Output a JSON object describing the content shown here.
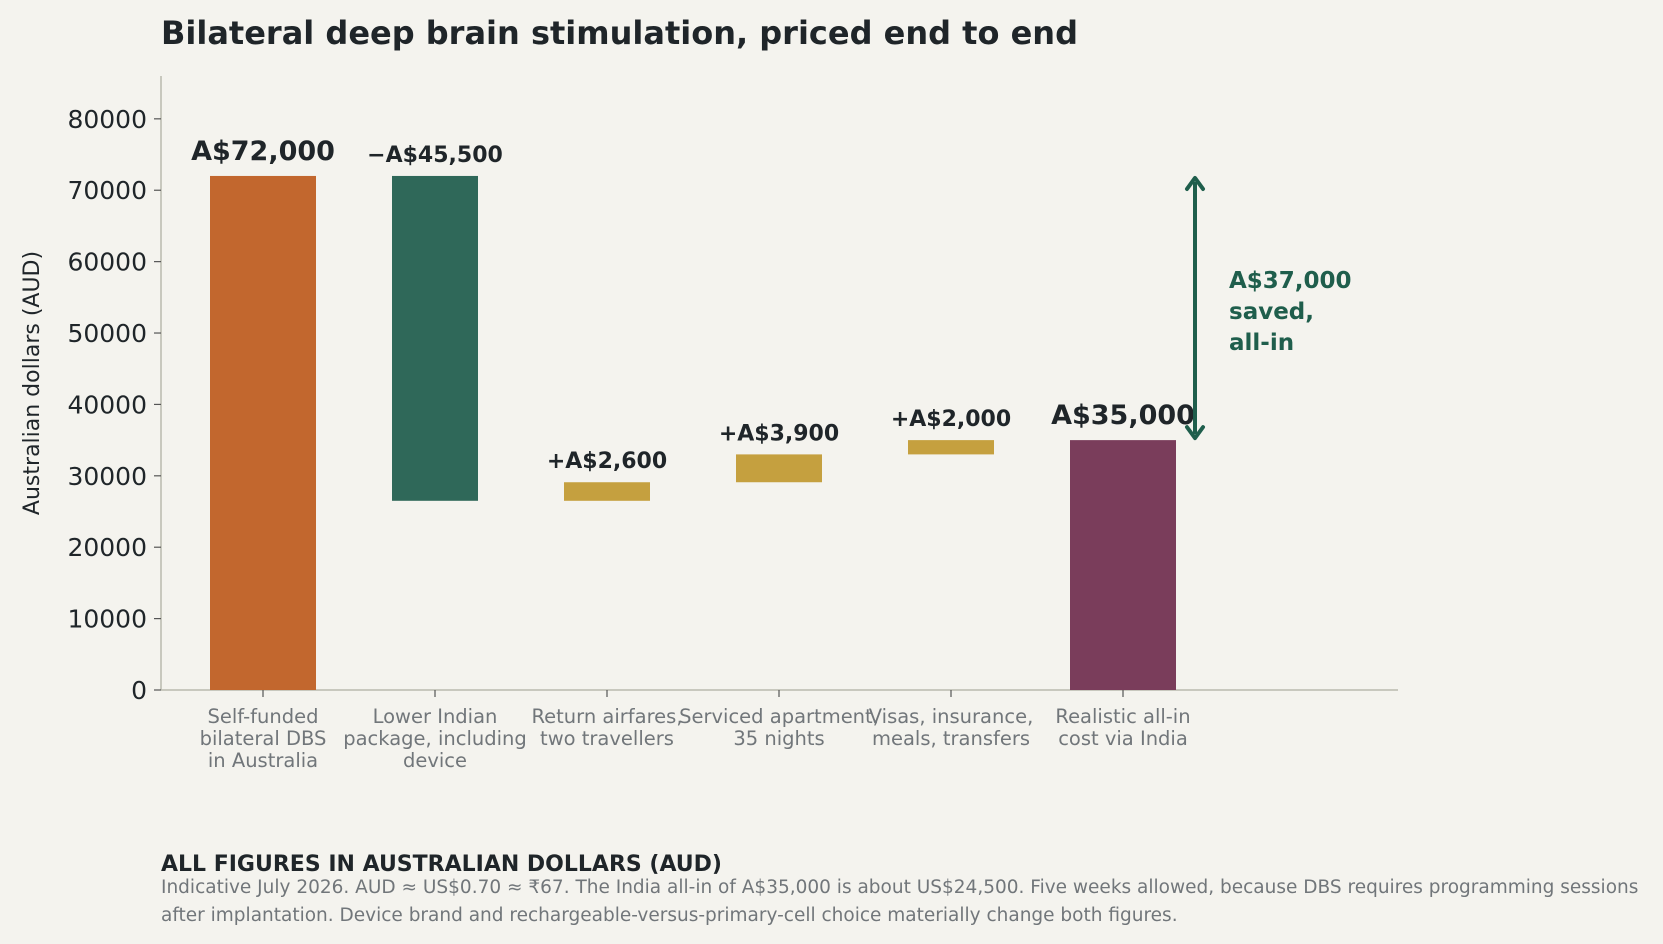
{
  "title": "Bilateral deep brain stimulation, priced end to end",
  "chart_data": {
    "type": "waterfall",
    "ylabel": "Australian dollars (AUD)",
    "ylim": [
      0,
      86000
    ],
    "yticks": [
      0,
      10000,
      20000,
      30000,
      40000,
      50000,
      60000,
      70000,
      80000
    ],
    "grid": false,
    "steps": [
      {
        "category": [
          "Self-funded",
          "bilateral DBS",
          "in Australia"
        ],
        "kind": "total",
        "start": 0,
        "end": 72000,
        "label": "A$72,000",
        "color": "#c2672e"
      },
      {
        "category": [
          "Lower Indian",
          "package, including",
          "device"
        ],
        "kind": "delta",
        "start": 72000,
        "end": 26500,
        "label": "−A$45,500",
        "color": "#2f6859"
      },
      {
        "category": [
          "Return airfares,",
          "two travellers"
        ],
        "kind": "delta",
        "start": 26500,
        "end": 29100,
        "label": "+A$2,600",
        "color": "#c5a03f"
      },
      {
        "category": [
          "Serviced apartment,",
          "35 nights"
        ],
        "kind": "delta",
        "start": 29100,
        "end": 33000,
        "label": "+A$3,900",
        "color": "#c5a03f"
      },
      {
        "category": [
          "Visas, insurance,",
          "meals, transfers"
        ],
        "kind": "delta",
        "start": 33000,
        "end": 35000,
        "label": "+A$2,000",
        "color": "#c5a03f"
      },
      {
        "category": [
          "Realistic all-in",
          "cost via India"
        ],
        "kind": "total",
        "start": 0,
        "end": 35000,
        "label": "A$35,000",
        "color": "#7a3d5b"
      }
    ],
    "annotation": {
      "text": [
        "A$37,000",
        "saved,",
        "all-in"
      ],
      "from": 72000,
      "to": 35000,
      "color": "#1f5e4c"
    }
  },
  "note": {
    "heading": "ALL FIGURES IN AUSTRALIAN DOLLARS (AUD)",
    "body": "Indicative July 2026. AUD ≈ US$0.70 ≈ ₹67. The India all-in of A$35,000 is about US$24,500. Five weeks allowed, because DBS requires programming sessions after implantation. Device brand and rechargeable-versus-primary-cell choice materially change both figures."
  }
}
